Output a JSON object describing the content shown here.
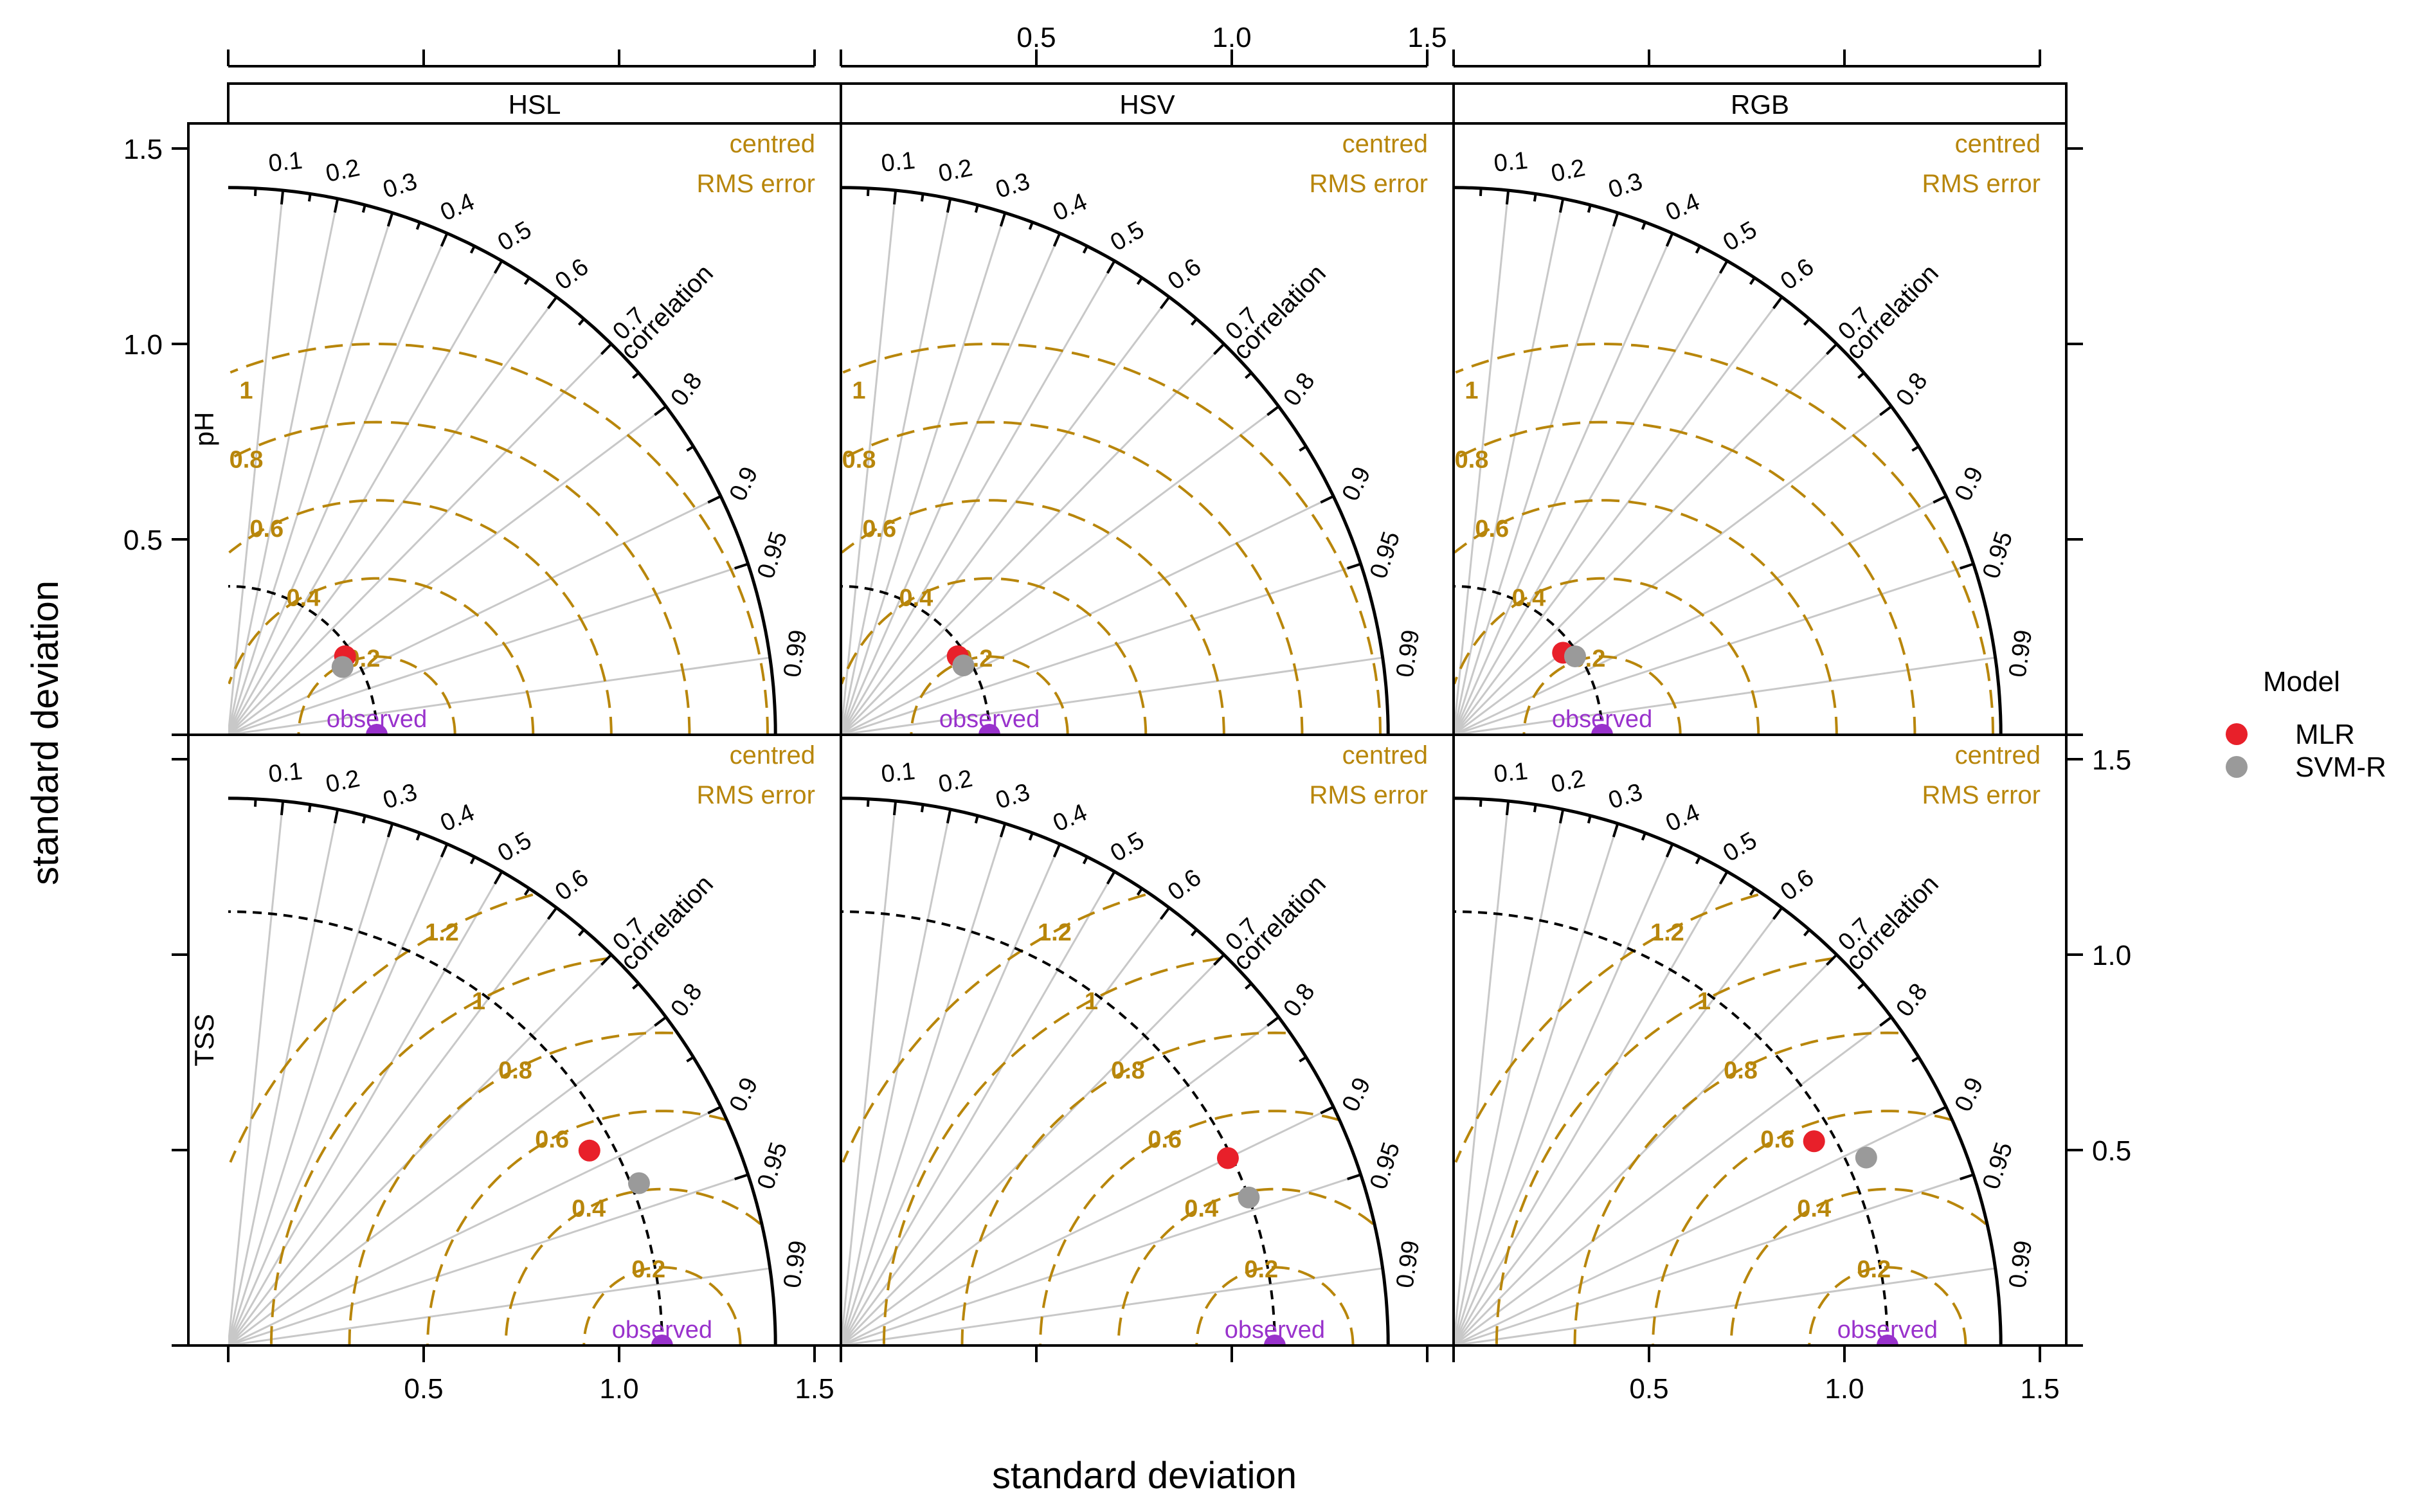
{
  "chart_data": {
    "type": "scatter",
    "subtype": "taylor-diagram",
    "xlabel": "standard deviation",
    "ylabel": "standard deviation",
    "columns": [
      "HSL",
      "HSV",
      "RGB"
    ],
    "rows": [
      "pH",
      "TSS"
    ],
    "axis_ticks": [
      0.5,
      1.0,
      1.5
    ],
    "axis_tick_labels": [
      "0.5",
      "1.0",
      "1.5"
    ],
    "std_range": [
      0,
      1.6
    ],
    "outer_arc_sd": 1.4,
    "correlation_ticks": [
      0.1,
      0.2,
      0.3,
      0.4,
      0.5,
      0.6,
      0.7,
      0.8,
      0.9,
      0.95,
      0.99
    ],
    "correlation_labels": [
      "0.1",
      "0.2",
      "0.3",
      "0.4",
      "0.5",
      "0.6",
      "0.7",
      "0.8",
      "0.9",
      "0.95",
      "0.99"
    ],
    "correlation_title": "correlation",
    "rms_title_line1": "centred",
    "rms_title_line2": "RMS error",
    "observed_label": "observed",
    "legend": {
      "title": "Model",
      "entries": [
        {
          "name": "MLR",
          "color": "#e8202a"
        },
        {
          "name": "SVM-R",
          "color": "#9a9a9a"
        }
      ]
    },
    "colors": {
      "rms": "#b8860b",
      "observed": "#9932cc",
      "grid": "#c8c8c8",
      "mlr": "#e8202a",
      "svmr": "#9a9a9a"
    },
    "panels": [
      {
        "row": "pH",
        "col": "HSL",
        "obs_sd": 0.38,
        "rms_levels": [
          0.2,
          0.4,
          0.6,
          0.8,
          1
        ],
        "rms_labels": [
          "0.2",
          "0.4",
          "0.6",
          "0.8",
          "1"
        ],
        "models": [
          {
            "name": "MLR",
            "sd": 0.36,
            "r": 0.83
          },
          {
            "name": "SVM-R",
            "sd": 0.34,
            "r": 0.86
          }
        ]
      },
      {
        "row": "pH",
        "col": "HSV",
        "obs_sd": 0.38,
        "rms_levels": [
          0.2,
          0.4,
          0.6,
          0.8,
          1
        ],
        "rms_labels": [
          "0.2",
          "0.4",
          "0.6",
          "0.8",
          "1"
        ],
        "models": [
          {
            "name": "MLR",
            "sd": 0.36,
            "r": 0.83
          },
          {
            "name": "SVM-R",
            "sd": 0.36,
            "r": 0.87
          }
        ]
      },
      {
        "row": "pH",
        "col": "RGB",
        "obs_sd": 0.38,
        "rms_levels": [
          0.2,
          0.4,
          0.6,
          0.8,
          1
        ],
        "rms_labels": [
          "0.2",
          "0.4",
          "0.6",
          "0.8",
          "1"
        ],
        "models": [
          {
            "name": "MLR",
            "sd": 0.35,
            "r": 0.8
          },
          {
            "name": "SVM-R",
            "sd": 0.37,
            "r": 0.84
          }
        ]
      },
      {
        "row": "TSS",
        "col": "HSL",
        "obs_sd": 1.11,
        "rms_levels": [
          0.2,
          0.4,
          0.6,
          0.8,
          1,
          1.2
        ],
        "rms_labels": [
          "0.2",
          "0.4",
          "0.6",
          "0.8",
          "1",
          "1.2"
        ],
        "models": [
          {
            "name": "MLR",
            "sd": 1.05,
            "r": 0.88
          },
          {
            "name": "SVM-R",
            "sd": 1.13,
            "r": 0.93
          }
        ]
      },
      {
        "row": "TSS",
        "col": "HSV",
        "obs_sd": 1.11,
        "rms_levels": [
          0.2,
          0.4,
          0.6,
          0.8,
          1,
          1.2
        ],
        "rms_labels": [
          "0.2",
          "0.4",
          "0.6",
          "0.8",
          "1",
          "1.2"
        ],
        "models": [
          {
            "name": "MLR",
            "sd": 1.1,
            "r": 0.9
          },
          {
            "name": "SVM-R",
            "sd": 1.11,
            "r": 0.94
          }
        ]
      },
      {
        "row": "TSS",
        "col": "RGB",
        "obs_sd": 1.11,
        "rms_levels": [
          0.2,
          0.4,
          0.6,
          0.8,
          1,
          1.2
        ],
        "rms_labels": [
          "0.2",
          "0.4",
          "0.6",
          "0.8",
          "1",
          "1.2"
        ],
        "models": [
          {
            "name": "MLR",
            "sd": 1.06,
            "r": 0.87
          },
          {
            "name": "SVM-R",
            "sd": 1.16,
            "r": 0.91
          }
        ]
      }
    ]
  }
}
